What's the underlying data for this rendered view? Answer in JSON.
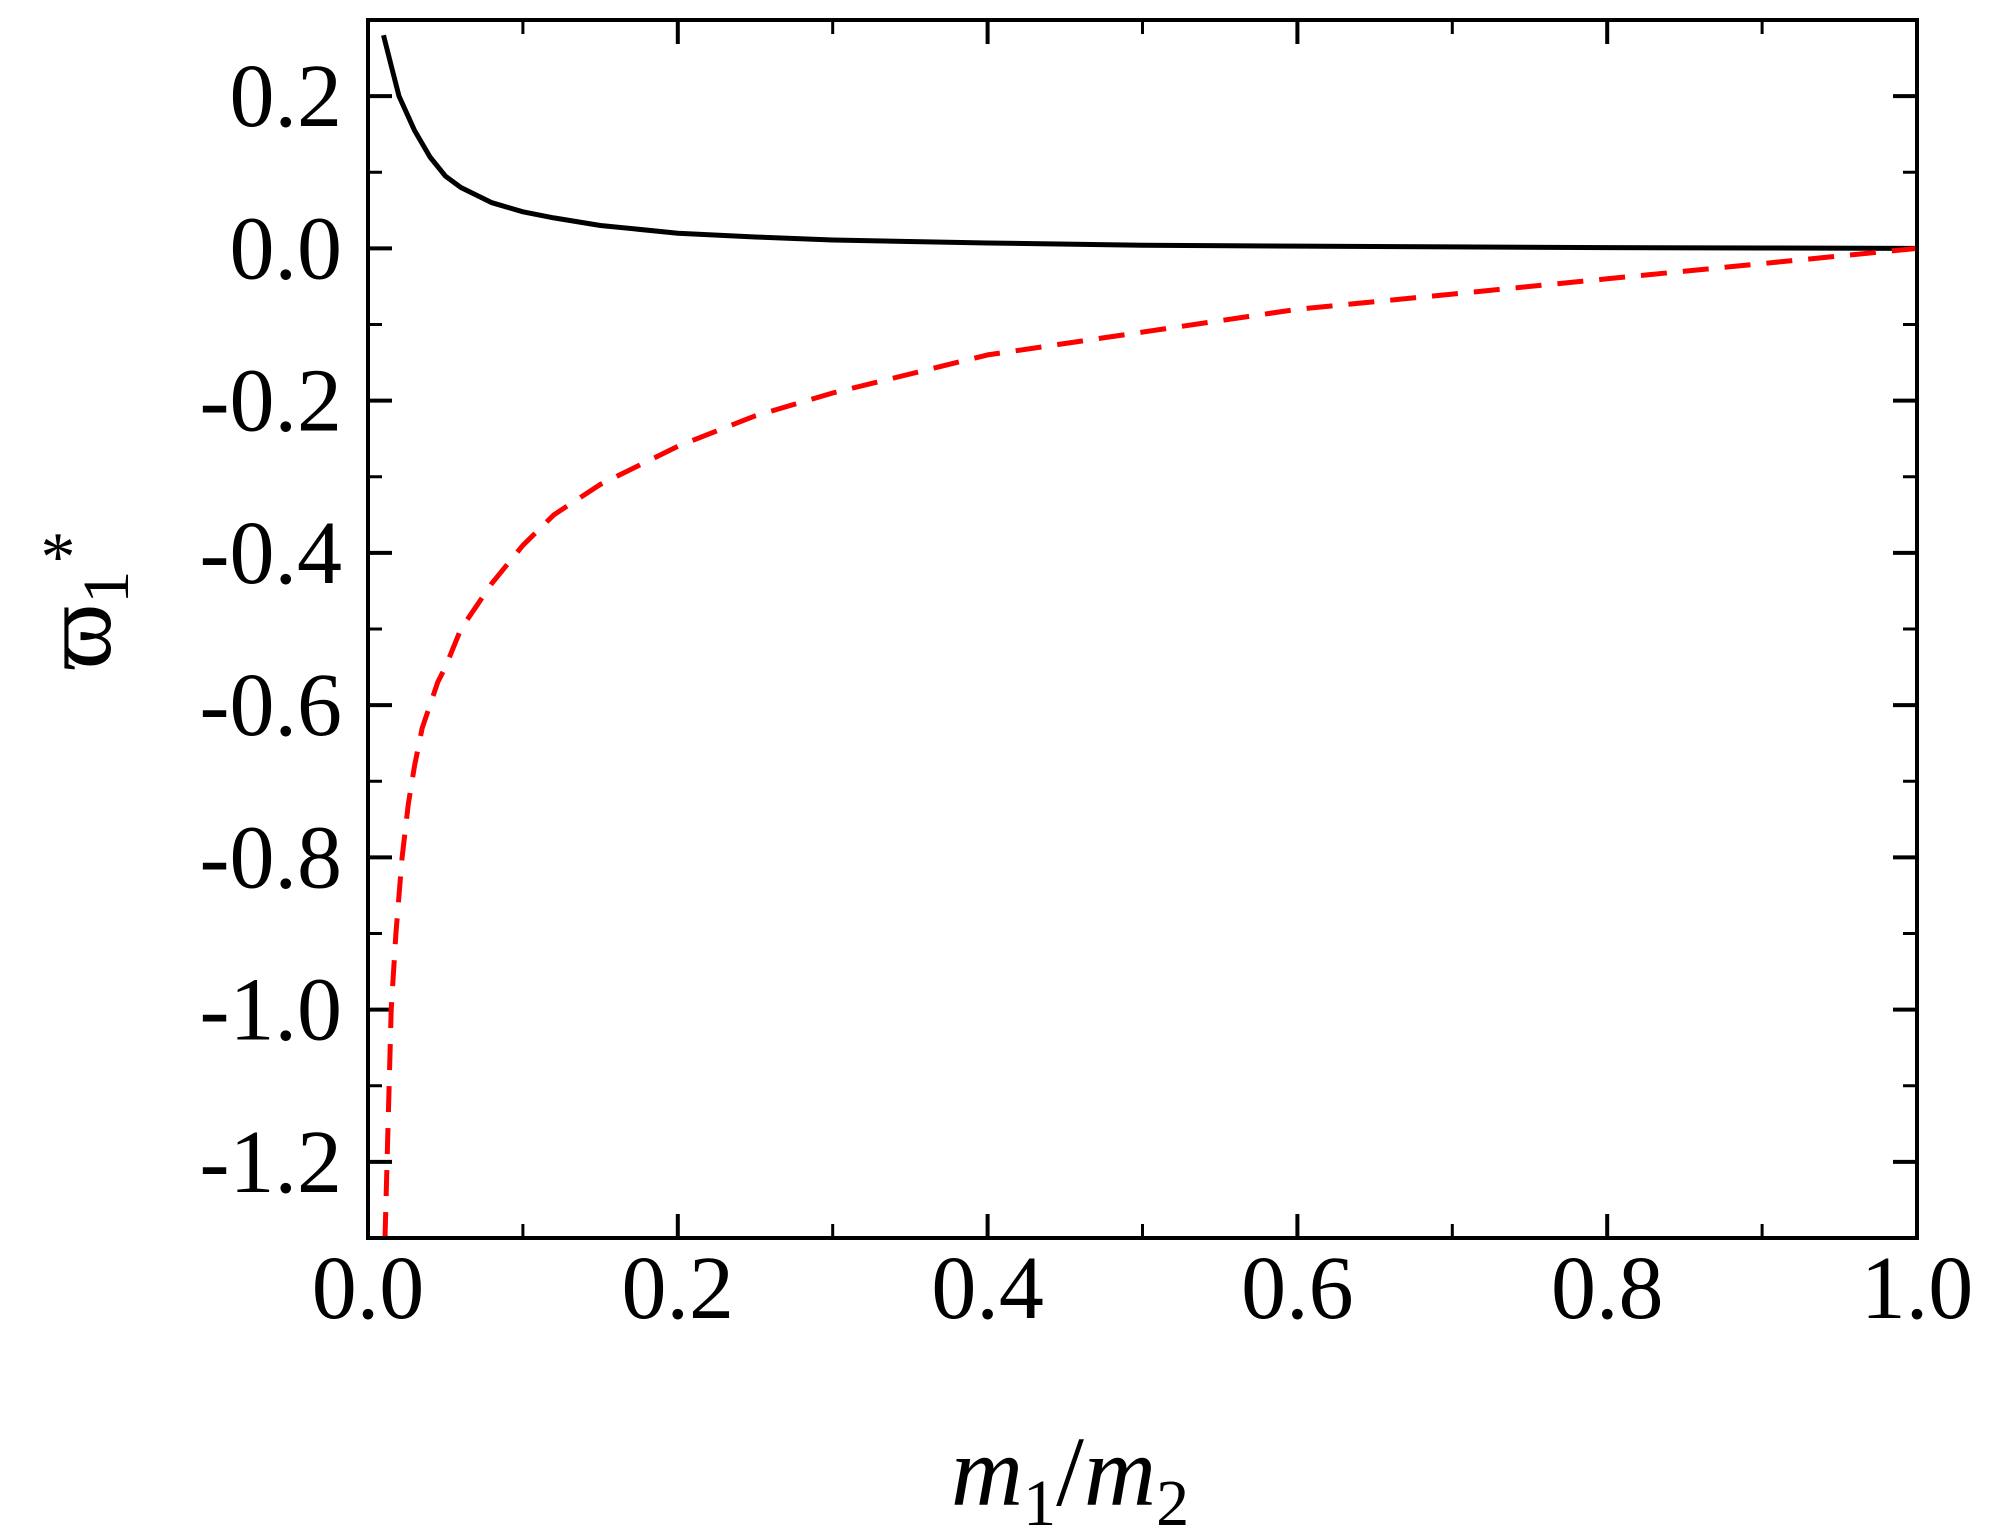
{
  "chart_data": {
    "type": "line",
    "title": "",
    "xlabel": {
      "base1": "m",
      "sub1": "1",
      "sep": "/",
      "base2": "m",
      "sub2": "2"
    },
    "ylabel": {
      "base": "ϖ",
      "sup": "*",
      "sub": "1"
    },
    "xlim": [
      0.0,
      1.0
    ],
    "ylim": [
      -1.3,
      0.3
    ],
    "xticks": [
      0.0,
      0.2,
      0.4,
      0.6,
      0.8,
      1.0
    ],
    "xtick_labels": [
      "0.0",
      "0.2",
      "0.4",
      "0.6",
      "0.8",
      "1.0"
    ],
    "yticks": [
      0.2,
      0.0,
      -0.2,
      -0.4,
      -0.6,
      -0.8,
      -1.0,
      -1.2
    ],
    "ytick_labels": [
      "0.2",
      "0.0",
      "-0.2",
      "-0.4",
      "-0.6",
      "-0.8",
      "-1.0",
      "-1.2"
    ],
    "minor_ticks": true,
    "grid": false,
    "series": [
      {
        "style": "solid",
        "color": "#000000",
        "x": [
          0.01,
          0.015,
          0.02,
          0.03,
          0.04,
          0.05,
          0.06,
          0.08,
          0.1,
          0.12,
          0.15,
          0.2,
          0.25,
          0.3,
          0.4,
          0.5,
          0.6,
          0.7,
          0.8,
          0.9,
          1.0
        ],
        "y": [
          0.28,
          0.24,
          0.2,
          0.155,
          0.12,
          0.095,
          0.08,
          0.06,
          0.048,
          0.04,
          0.03,
          0.02,
          0.015,
          0.011,
          0.007,
          0.004,
          0.003,
          0.002,
          0.001,
          0.0005,
          0.0
        ]
      },
      {
        "style": "dashed",
        "color": "#ff0000",
        "x": [
          0.011,
          0.013,
          0.015,
          0.018,
          0.022,
          0.026,
          0.03,
          0.035,
          0.04,
          0.045,
          0.05,
          0.06,
          0.07,
          0.08,
          0.1,
          0.12,
          0.15,
          0.2,
          0.25,
          0.3,
          0.35,
          0.4,
          0.5,
          0.6,
          0.7,
          0.8,
          0.9,
          1.0
        ],
        "y": [
          -1.3,
          -1.15,
          -1.0,
          -0.9,
          -0.8,
          -0.73,
          -0.68,
          -0.63,
          -0.6,
          -0.57,
          -0.55,
          -0.5,
          -0.47,
          -0.44,
          -0.39,
          -0.35,
          -0.31,
          -0.26,
          -0.22,
          -0.19,
          -0.165,
          -0.14,
          -0.11,
          -0.08,
          -0.06,
          -0.04,
          -0.02,
          0.0
        ]
      }
    ]
  }
}
